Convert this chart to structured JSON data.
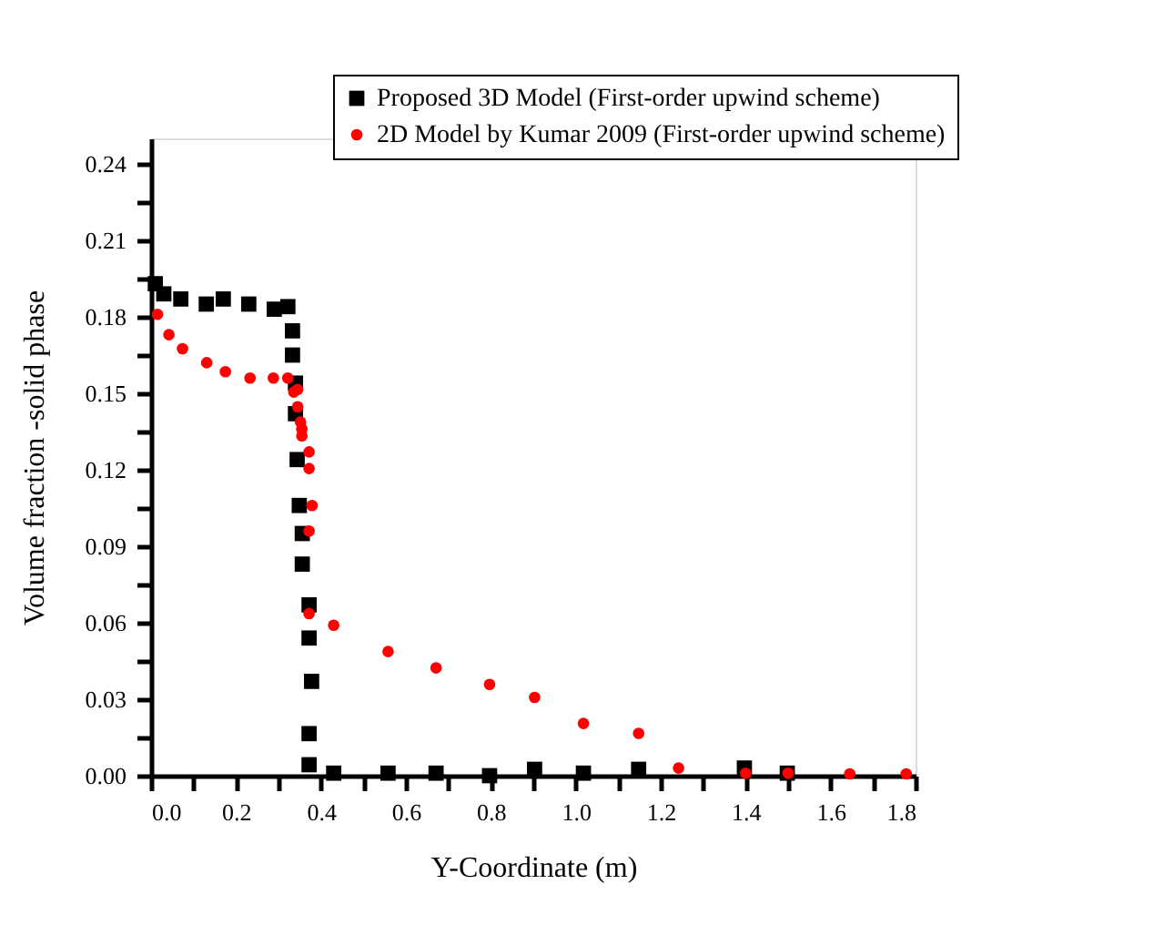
{
  "chart_data": {
    "type": "scatter",
    "xlabel": "Y-Coordinate (m)",
    "ylabel": "Volume fraction -solid phase",
    "xlim": [
      0,
      1.8
    ],
    "ylim": [
      0,
      0.25
    ],
    "xticks": [
      {
        "value": 0,
        "label": "0.0"
      },
      {
        "value": 0.1,
        "label": null
      },
      {
        "value": 0.2,
        "label": "0.2"
      },
      {
        "value": 0.3,
        "label": null
      },
      {
        "value": 0.4,
        "label": "0.4"
      },
      {
        "value": 0.5,
        "label": null
      },
      {
        "value": 0.6,
        "label": "0.6"
      },
      {
        "value": 0.7,
        "label": null
      },
      {
        "value": 0.8,
        "label": "0.8"
      },
      {
        "value": 0.9,
        "label": null
      },
      {
        "value": 1.0,
        "label": "1.0"
      },
      {
        "value": 1.1,
        "label": null
      },
      {
        "value": 1.2,
        "label": "1.2"
      },
      {
        "value": 1.3,
        "label": null
      },
      {
        "value": 1.4,
        "label": "1.4"
      },
      {
        "value": 1.5,
        "label": null
      },
      {
        "value": 1.6,
        "label": "1.6"
      },
      {
        "value": 1.7,
        "label": null
      },
      {
        "value": 1.8,
        "label": "1.8"
      }
    ],
    "yticks": [
      {
        "value": 0,
        "label": "0.00"
      },
      {
        "value": 0.015,
        "label": null
      },
      0.03,
      {
        "value": 0.045,
        "label": null
      },
      0.06,
      {
        "value": 0.075,
        "label": null
      },
      0.09,
      {
        "value": 0.105,
        "label": null
      },
      0.12,
      {
        "value": 0.135,
        "label": null
      },
      0.15,
      {
        "value": 0.165,
        "label": null
      },
      0.18,
      {
        "value": 0.195,
        "label": null
      },
      0.21,
      {
        "value": 0.225,
        "label": null
      },
      0.24
    ],
    "grid": false,
    "legend": "top right",
    "series": [
      {
        "name": "Proposed 3D Model (First-order upwind scheme)",
        "color": "#000000",
        "marker": "square",
        "x": [
          0.01,
          0.03,
          0.07,
          0.13,
          0.17,
          0.23,
          0.29,
          0.322,
          0.333,
          0.333,
          0.34,
          0.34,
          0.344,
          0.349,
          0.356,
          0.356,
          0.372,
          0.372,
          0.378,
          0.372,
          0.372,
          0.43,
          0.558,
          0.671,
          0.797,
          0.903,
          1.018,
          1.148,
          1.397,
          1.498
        ],
        "values": [
          0.193,
          0.189,
          0.187,
          0.185,
          0.187,
          0.185,
          0.183,
          0.184,
          0.1745,
          0.165,
          0.154,
          0.142,
          0.124,
          0.106,
          0.095,
          0.083,
          0.067,
          0.054,
          0.037,
          0.0165,
          0.0043,
          0.001,
          0.001,
          0.001,
          0.0,
          0.0025,
          0.001,
          0.0025,
          0.003,
          0.001
        ]
      },
      {
        "name": "2D Model by Kumar 2009 (First-order upwind scheme)",
        "color": "#ff0000",
        "marker": "circle",
        "x": [
          0.015,
          0.042,
          0.074,
          0.131,
          0.175,
          0.233,
          0.288,
          0.322,
          0.336,
          0.345,
          0.345,
          0.352,
          0.355,
          0.355,
          0.372,
          0.372,
          0.379,
          0.372,
          0.372,
          0.43,
          0.558,
          0.671,
          0.797,
          0.903,
          1.018,
          1.148,
          1.242,
          1.4,
          1.5,
          1.645,
          1.778
        ],
        "values": [
          0.181,
          0.173,
          0.1675,
          0.162,
          0.1585,
          0.156,
          0.156,
          0.156,
          0.1505,
          0.1515,
          0.1447,
          0.1387,
          0.136,
          0.1333,
          0.127,
          0.1205,
          0.106,
          0.096,
          0.0636,
          0.059,
          0.0487,
          0.0423,
          0.0358,
          0.0307,
          0.0205,
          0.0166,
          0.003,
          0.001,
          0.001,
          0.0007,
          0.0007
        ]
      }
    ]
  }
}
